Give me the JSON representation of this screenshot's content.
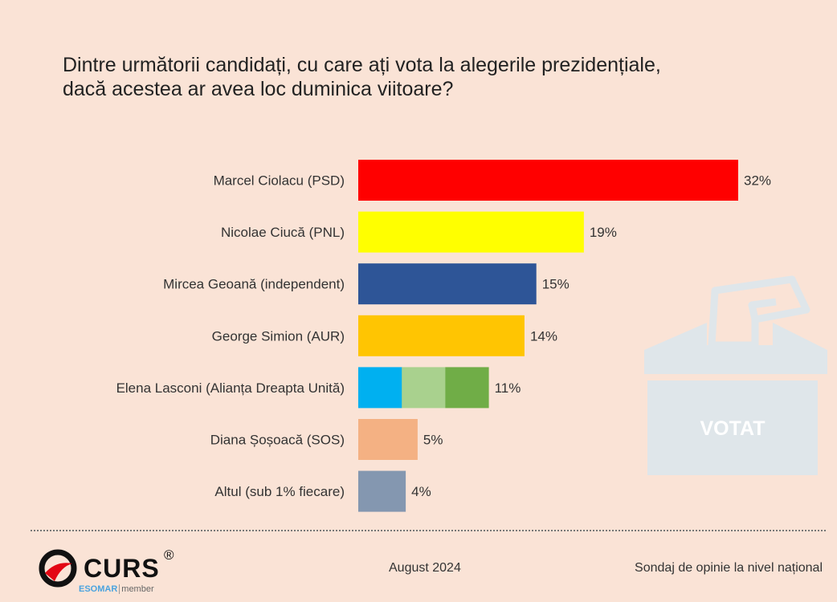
{
  "title": {
    "line1": "Dintre următorii candidați, cu care ați vota la alegerile prezidențiale,",
    "line2": "dacă acestea ar avea loc duminica viitoare?"
  },
  "chart_data": {
    "type": "bar",
    "orientation": "horizontal",
    "title": "Dintre următorii candidați, cu care ați vota la alegerile prezidențiale, dacă acestea ar avea loc duminica viitoare?",
    "categories": [
      "Marcel Ciolacu (PSD)",
      "Nicolae Ciucă (PNL)",
      "Mircea Geoană (independent)",
      "George Simion (AUR)",
      "Elena Lasconi (Alianța Dreapta Unită)",
      "Diana Șoșoacă (SOS)",
      "Altul (sub 1% fiecare)"
    ],
    "values": [
      32,
      19,
      15,
      14,
      11,
      5,
      4
    ],
    "value_labels": [
      "32%",
      "19%",
      "15%",
      "14%",
      "11%",
      "5%",
      "4%"
    ],
    "colors": [
      [
        "#ff0000"
      ],
      [
        "#ffff00"
      ],
      [
        "#2e5597"
      ],
      [
        "#ffc502"
      ],
      [
        "#00b0f0",
        "#a9d18e",
        "#70ad47"
      ],
      [
        "#f4b183"
      ],
      [
        "#8497b0"
      ]
    ],
    "xlim": [
      0,
      32
    ],
    "grid": false,
    "legend": "none"
  },
  "ballot": {
    "label": "VOTAT",
    "color": "#dfe6ea",
    "text_color": "#ffffff"
  },
  "logo": {
    "name": "CURS",
    "reg": "®",
    "esomar": "ESOMAR",
    "member": "member"
  },
  "footer": {
    "date": "August 2024",
    "source": "Sondaj de opinie la nivel național"
  }
}
